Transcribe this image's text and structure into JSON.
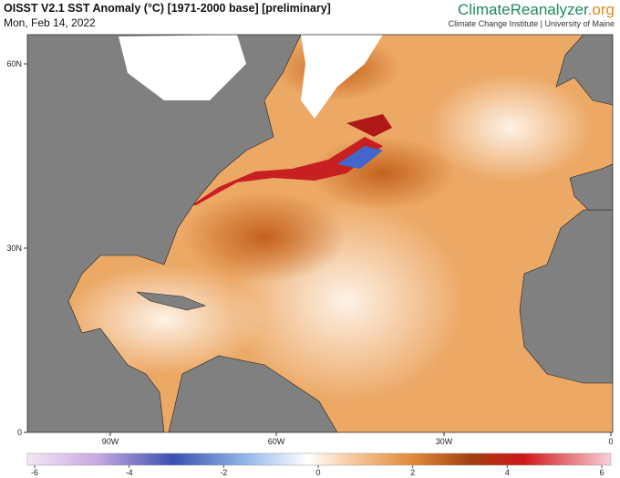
{
  "header": {
    "title": "OISST V2.1 SST Anomaly (°C) [1971-2000 base] [preliminary]",
    "date": "Mon, Feb 14, 2022"
  },
  "brand": {
    "name": "ClimateReanalyzer",
    "tld": ".org",
    "subtitle": "Climate Change Institute | University of Maine"
  },
  "map": {
    "lat_labels": [
      "60N",
      "30N",
      "0"
    ],
    "lon_labels": [
      "90W",
      "60W",
      "30W",
      "0"
    ]
  },
  "colorbar": {
    "ticks": [
      -6,
      -4,
      -2,
      0,
      2,
      4,
      6
    ]
  }
}
